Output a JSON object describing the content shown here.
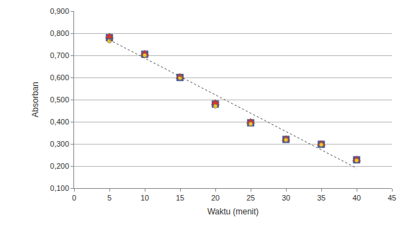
{
  "chart_data": {
    "type": "scatter",
    "x_label": "Waktu (menit)",
    "y_label": "Absorban",
    "x": [
      5,
      10,
      15,
      20,
      25,
      30,
      35,
      40
    ],
    "series": [
      {
        "color": "#4a5ab8",
        "marker": "square",
        "values": [
          0.78,
          0.705,
          0.6,
          0.48,
          0.395,
          0.32,
          0.298,
          0.228
        ]
      },
      {
        "color": "#d9352b",
        "marker": "triangle",
        "values": [
          0.785,
          0.708,
          0.603,
          0.485,
          0.4,
          0.322,
          0.3,
          0.23
        ]
      },
      {
        "color": "#f2c12e",
        "marker": "circle",
        "values": [
          0.765,
          0.7,
          0.598,
          0.47,
          0.39,
          0.318,
          0.296,
          0.225
        ]
      },
      {
        "type": "line",
        "line_style": "dotted",
        "color": "#505050",
        "values": [
          0.77,
          0.687,
          0.604,
          0.521,
          0.439,
          0.356,
          0.273,
          0.19
        ]
      }
    ],
    "xlim": [
      0,
      45
    ],
    "xticks": [
      0,
      5,
      10,
      15,
      20,
      25,
      30,
      35,
      40,
      45
    ],
    "ylim": [
      0.1,
      0.9
    ],
    "yticks": [
      {
        "value": 0.1,
        "label": "0,100"
      },
      {
        "value": 0.2,
        "label": "0,200"
      },
      {
        "value": 0.3,
        "label": "0,300"
      },
      {
        "value": 0.4,
        "label": "0,400"
      },
      {
        "value": 0.5,
        "label": "0,500"
      },
      {
        "value": 0.6,
        "label": "0,600"
      },
      {
        "value": 0.7,
        "label": "0,700"
      },
      {
        "value": 0.8,
        "label": "0,800"
      },
      {
        "value": 0.9,
        "label": "0,900"
      }
    ],
    "grid": true
  }
}
